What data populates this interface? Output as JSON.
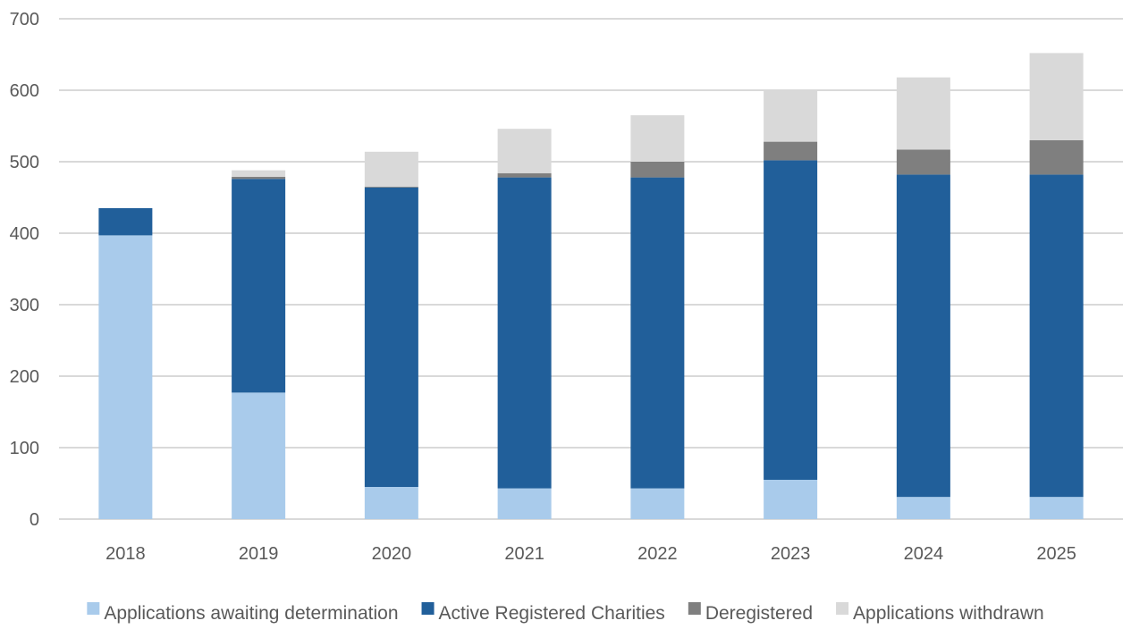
{
  "chart_data": {
    "type": "bar",
    "stacked": true,
    "categories": [
      "2018",
      "2019",
      "2020",
      "2021",
      "2022",
      "2023",
      "2024",
      "2025"
    ],
    "series": [
      {
        "name": "Applications awaiting determination",
        "color": "#a9cbeb",
        "values": [
          397,
          177,
          45,
          43,
          43,
          55,
          31,
          31
        ]
      },
      {
        "name": "Active Registered Charities",
        "color": "#215f9a",
        "values": [
          38,
          299,
          419,
          435,
          435,
          447,
          451,
          451
        ]
      },
      {
        "name": "Deregistered",
        "color": "#7f7f7f",
        "values": [
          0,
          3,
          1,
          6,
          22,
          26,
          35,
          48
        ]
      },
      {
        "name": "Applications withdrawn",
        "color": "#d9d9d9",
        "values": [
          0,
          9,
          49,
          62,
          65,
          73,
          101,
          122
        ]
      }
    ],
    "y_ticks": [
      "0",
      "100",
      "200",
      "300",
      "400",
      "500",
      "600",
      "700"
    ],
    "ylim": [
      0,
      700
    ],
    "grid": true,
    "gridline_color": "#d9d9d9",
    "legend_position": "bottom"
  }
}
